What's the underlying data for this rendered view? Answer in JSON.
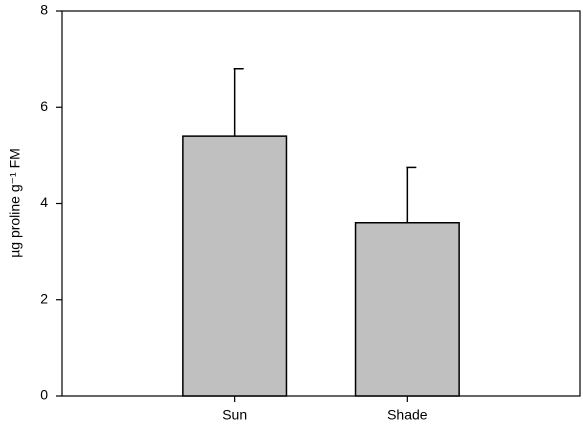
{
  "chart_data": {
    "type": "bar",
    "y_label": "µg proline g⁻¹ FM",
    "categories": [
      "Sun",
      "Shade"
    ],
    "values": [
      5.4,
      3.6
    ],
    "errors": [
      1.4,
      1.15
    ],
    "color": "#c0c0c0",
    "ylim": [
      0,
      8
    ],
    "yticks": [
      0,
      2,
      4,
      6,
      8
    ],
    "grid": false
  }
}
